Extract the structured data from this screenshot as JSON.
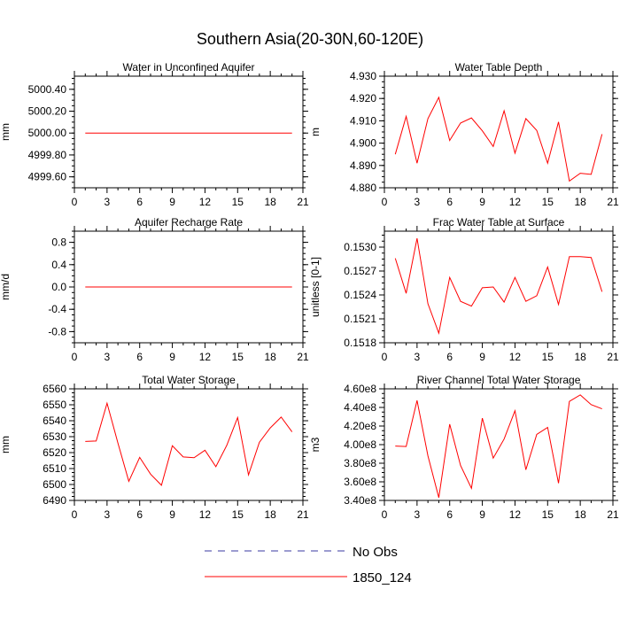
{
  "main_title": "Southern Asia(20-30N,60-120E)",
  "legend": {
    "items": [
      {
        "label": "No Obs",
        "color": "#3a3aa0",
        "style": "dashed"
      },
      {
        "label": "1850_124",
        "color": "#ff0000",
        "style": "solid"
      }
    ]
  },
  "chart_data": [
    {
      "type": "line",
      "title": "Water in Unconfined Aquifer",
      "ylabel": "mm",
      "xlim": [
        0,
        21
      ],
      "xticks": [
        0,
        3,
        6,
        9,
        12,
        15,
        18,
        21
      ],
      "ylim": [
        4999.5,
        5000.52
      ],
      "yticks": [
        4999.6,
        4999.8,
        5000.0,
        5000.2,
        5000.4
      ],
      "ytick_labels": [
        "4999.60",
        "4999.80",
        "5000.00",
        "5000.20",
        "5000.40"
      ],
      "series": [
        {
          "name": "1850_124",
          "color": "#ff0000",
          "x": [
            1,
            2,
            3,
            4,
            5,
            6,
            7,
            8,
            9,
            10,
            11,
            12,
            13,
            14,
            15,
            16,
            17,
            18,
            19,
            20
          ],
          "y": [
            5000,
            5000,
            5000,
            5000,
            5000,
            5000,
            5000,
            5000,
            5000,
            5000,
            5000,
            5000,
            5000,
            5000,
            5000,
            5000,
            5000,
            5000,
            5000,
            5000
          ]
        }
      ]
    },
    {
      "type": "line",
      "title": "Water Table Depth",
      "ylabel": "m",
      "xlim": [
        0,
        21
      ],
      "xticks": [
        0,
        3,
        6,
        9,
        12,
        15,
        18,
        21
      ],
      "ylim": [
        4.88,
        4.93
      ],
      "yticks": [
        4.88,
        4.89,
        4.9,
        4.91,
        4.92,
        4.93
      ],
      "ytick_labels": [
        "4.880",
        "4.890",
        "4.900",
        "4.910",
        "4.920",
        "4.930"
      ],
      "series": [
        {
          "name": "1850_124",
          "color": "#ff0000",
          "x": [
            1,
            2,
            3,
            4,
            5,
            6,
            7,
            8,
            9,
            10,
            11,
            12,
            13,
            14,
            15,
            16,
            17,
            18,
            19,
            20
          ],
          "y": [
            4.895,
            4.912,
            4.891,
            4.911,
            4.9205,
            4.9012,
            4.909,
            4.9113,
            4.9055,
            4.8985,
            4.9145,
            4.8955,
            4.911,
            4.9057,
            4.891,
            4.9095,
            4.883,
            4.8865,
            4.886,
            4.904
          ]
        }
      ]
    },
    {
      "type": "line",
      "title": "Aquifer Recharge Rate",
      "ylabel": "mm/d",
      "xlim": [
        0,
        21
      ],
      "xticks": [
        0,
        3,
        6,
        9,
        12,
        15,
        18,
        21
      ],
      "ylim": [
        -1.0,
        1.0
      ],
      "yticks": [
        -0.8,
        -0.4,
        0.0,
        0.4,
        0.8
      ],
      "ytick_labels": [
        "-0.8",
        "-0.4",
        "0.0",
        "0.4",
        "0.8"
      ],
      "series": [
        {
          "name": "1850_124",
          "color": "#ff0000",
          "x": [
            1,
            2,
            3,
            4,
            5,
            6,
            7,
            8,
            9,
            10,
            11,
            12,
            13,
            14,
            15,
            16,
            17,
            18,
            19,
            20
          ],
          "y": [
            0,
            0,
            0,
            0,
            0,
            0,
            0,
            0,
            0,
            0,
            0,
            0,
            0,
            0,
            0,
            0,
            0,
            0,
            0,
            0
          ]
        }
      ]
    },
    {
      "type": "line",
      "title": "Frac Water Table at Surface",
      "ylabel": "unitless [0-1]",
      "xlim": [
        0,
        21
      ],
      "xticks": [
        0,
        3,
        6,
        9,
        12,
        15,
        18,
        21
      ],
      "ylim": [
        0.1518,
        0.1532
      ],
      "yticks": [
        0.1518,
        0.1521,
        0.1524,
        0.1527,
        0.153
      ],
      "ytick_labels": [
        "0.1518",
        "0.1521",
        "0.1524",
        "0.1527",
        "0.1530"
      ],
      "series": [
        {
          "name": "1850_124",
          "color": "#ff0000",
          "x": [
            1,
            2,
            3,
            4,
            5,
            6,
            7,
            8,
            9,
            10,
            11,
            12,
            13,
            14,
            15,
            16,
            17,
            18,
            19,
            20
          ],
          "y": [
            0.15286,
            0.15242,
            0.15311,
            0.15229,
            0.15192,
            0.15262,
            0.15232,
            0.15226,
            0.15249,
            0.1525,
            0.15231,
            0.15262,
            0.15232,
            0.15239,
            0.15275,
            0.15228,
            0.15288,
            0.15288,
            0.15287,
            0.15244
          ]
        }
      ]
    },
    {
      "type": "line",
      "title": "Total Water Storage",
      "ylabel": "mm",
      "xlim": [
        0,
        21
      ],
      "xticks": [
        0,
        3,
        6,
        9,
        12,
        15,
        18,
        21
      ],
      "ylim": [
        6490,
        6560
      ],
      "yticks": [
        6490,
        6500,
        6510,
        6520,
        6530,
        6540,
        6550,
        6560
      ],
      "ytick_labels": [
        "6490",
        "6500",
        "6510",
        "6520",
        "6530",
        "6540",
        "6550",
        "6560"
      ],
      "series": [
        {
          "name": "1850_124",
          "color": "#ff0000",
          "x": [
            1,
            2,
            3,
            4,
            5,
            6,
            7,
            8,
            9,
            10,
            11,
            12,
            13,
            14,
            15,
            16,
            17,
            18,
            19,
            20
          ],
          "y": [
            6527,
            6527.3,
            6551,
            6526,
            6502,
            6517,
            6506.5,
            6499.5,
            6524.3,
            6517.3,
            6516.8,
            6521.5,
            6511.2,
            6524.5,
            6542,
            6506,
            6526.5,
            6535.5,
            6542.3,
            6533
          ]
        }
      ]
    },
    {
      "type": "line",
      "title": "River Channel Total Water Storage",
      "ylabel": "m3",
      "xlim": [
        0,
        21
      ],
      "xticks": [
        0,
        3,
        6,
        9,
        12,
        15,
        18,
        21
      ],
      "ylim": [
        340000000,
        460000000
      ],
      "yticks": [
        340000000,
        360000000,
        380000000,
        400000000,
        420000000,
        440000000,
        460000000
      ],
      "ytick_labels": [
        "3.40e8",
        "3.60e8",
        "3.80e8",
        "4.00e8",
        "4.20e8",
        "4.40e8",
        "4.60e8"
      ],
      "series": [
        {
          "name": "1850_124",
          "color": "#ff0000",
          "x": [
            1,
            2,
            3,
            4,
            5,
            6,
            7,
            8,
            9,
            10,
            11,
            12,
            13,
            14,
            15,
            16,
            17,
            18,
            19,
            20
          ],
          "y": [
            398500000,
            398000000,
            447500000,
            388000000,
            343000000,
            422000000,
            377500000,
            353000000,
            428500000,
            385500000,
            406000000,
            436500000,
            373000000,
            411000000,
            418500000,
            358500000,
            446500000,
            453500000,
            443000000,
            438500000
          ]
        }
      ]
    }
  ]
}
